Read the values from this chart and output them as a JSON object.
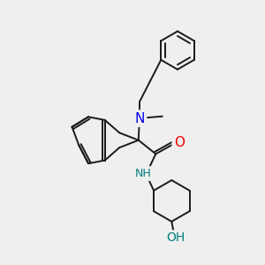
{
  "bg_color": "#efefef",
  "bond_color": "#1a1a1a",
  "N_color": "#0000ee",
  "O_color": "#ee0000",
  "NH_color": "#008080",
  "OH_color": "#008080",
  "line_width": 1.4,
  "font_size": 9,
  "fig_size": [
    3.0,
    3.0
  ],
  "dpi": 100,
  "xlim": [
    0,
    10
  ],
  "ylim": [
    0,
    10
  ]
}
